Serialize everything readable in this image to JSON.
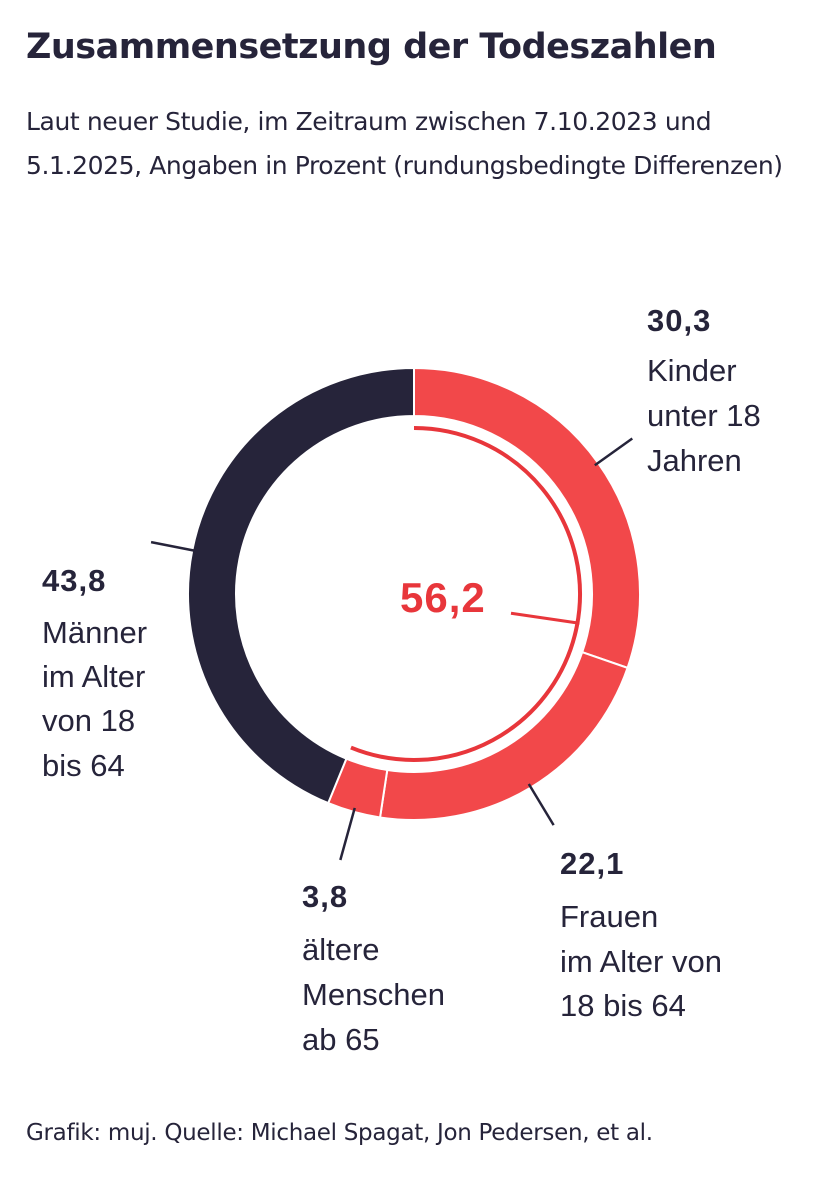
{
  "chart_data": {
    "type": "donut",
    "title": "Zusammensetzung der Todeszahlen",
    "subtitle": "Laut neuer Studie, im Zeitraum zwischen 7.10.2023 und 5.1.2025, Angaben in Prozent (rundungsbedingte Differenzen)",
    "segments": [
      {
        "key": "kinder",
        "value": 30.3,
        "value_label": "30,3",
        "label_lines": [
          "Kinder",
          "unter 18",
          "Jahren"
        ],
        "color": "#f2484a"
      },
      {
        "key": "frauen",
        "value": 22.1,
        "value_label": "22,1",
        "label_lines": [
          "Frauen",
          "im Alter von",
          "18 bis 64"
        ],
        "color": "#f2484a"
      },
      {
        "key": "aeltere",
        "value": 3.8,
        "value_label": "3,8",
        "label_lines": [
          "ältere",
          "Menschen",
          "ab 65"
        ],
        "color": "#f2484a"
      },
      {
        "key": "maenner",
        "value": 43.8,
        "value_label": "43,8",
        "label_lines": [
          "Männer",
          "im Alter",
          "von 18",
          "bis 64"
        ],
        "color": "#26243a"
      }
    ],
    "highlight": {
      "value": 56.2,
      "value_label": "56,2",
      "color": "#e8363b",
      "covers": [
        "kinder",
        "frauen",
        "aeltere"
      ]
    }
  },
  "footer": "Grafik: muj. Quelle: Michael Spagat, Jon Pedersen, et al."
}
